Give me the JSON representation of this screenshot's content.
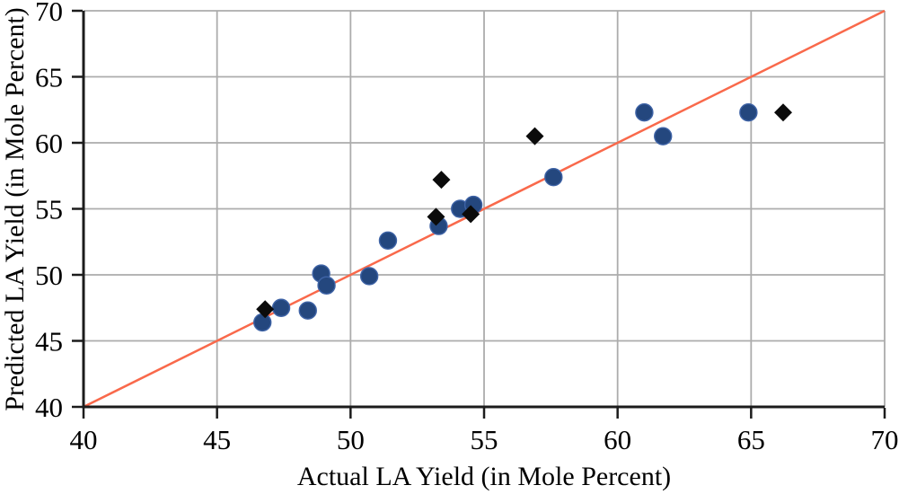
{
  "chart_data": {
    "type": "scatter",
    "title": "",
    "xlabel": "Actual LA Yield (in Mole Percent)",
    "ylabel": "Predicted LA Yield (in Mole Percent)",
    "xlim": [
      40,
      70
    ],
    "ylim": [
      40,
      70
    ],
    "xticks": [
      40,
      45,
      50,
      55,
      60,
      65,
      70
    ],
    "yticks": [
      40,
      45,
      50,
      55,
      60,
      65,
      70
    ],
    "grid": true,
    "legend": "none",
    "reference_line": {
      "from": [
        40,
        40
      ],
      "to": [
        70,
        70
      ]
    },
    "series": [
      {
        "name": "circle-series",
        "marker": "circle",
        "points": [
          [
            46.7,
            46.4
          ],
          [
            47.4,
            47.5
          ],
          [
            48.4,
            47.3
          ],
          [
            48.9,
            50.1
          ],
          [
            49.1,
            49.2
          ],
          [
            50.7,
            49.9
          ],
          [
            51.4,
            52.6
          ],
          [
            53.3,
            53.7
          ],
          [
            54.1,
            55.0
          ],
          [
            54.6,
            55.3
          ],
          [
            57.6,
            57.4
          ],
          [
            61.0,
            62.3
          ],
          [
            61.7,
            60.5
          ],
          [
            64.9,
            62.3
          ]
        ]
      },
      {
        "name": "diamond-series",
        "marker": "diamond",
        "points": [
          [
            46.8,
            47.4
          ],
          [
            53.2,
            54.4
          ],
          [
            53.4,
            57.2
          ],
          [
            54.5,
            54.6
          ],
          [
            56.9,
            60.5
          ],
          [
            66.2,
            62.3
          ]
        ]
      }
    ],
    "colors": {
      "reference_line": "#F9694B",
      "circle_fill": "#24477E",
      "circle_edge": "#3E63A6",
      "diamond_fill": "#0B0B0B",
      "grid": "#ACACAC",
      "axis": "#1C1C1C",
      "background": "#FFFFFF"
    }
  }
}
